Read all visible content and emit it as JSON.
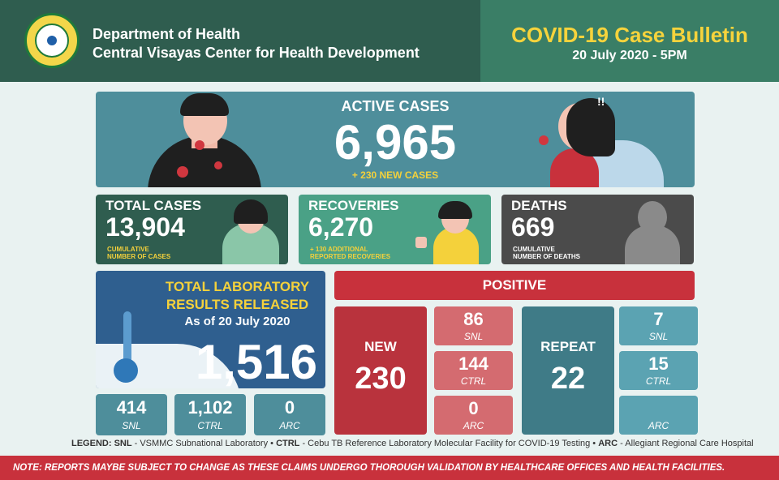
{
  "header": {
    "org_line1": "Department of Health",
    "org_line2": "Central Visayas Center for Health Development",
    "bulletin_title": "COVID-19 Case Bulletin",
    "bulletin_date": "20 July 2020 - 5PM"
  },
  "active": {
    "label": "ACTIVE CASES",
    "value": "6,965",
    "new_cases": "+ 230 NEW CASES"
  },
  "total": {
    "label": "TOTAL CASES",
    "value": "13,904",
    "sub1": "CUMULATIVE",
    "sub2": "NUMBER OF CASES"
  },
  "recoveries": {
    "label": "RECOVERIES",
    "value": "6,270",
    "sub1": "+ 130 ADDITIONAL",
    "sub2": "REPORTED RECOVERIES"
  },
  "deaths": {
    "label": "DEATHS",
    "value": "669",
    "sub1": "CUMULATIVE",
    "sub2": "NUMBER OF DEATHS"
  },
  "lab": {
    "title1": "TOTAL LABORATORY",
    "title2": "RESULTS RELEASED",
    "as_of": "As of 20 July 2020",
    "value": "1,516",
    "breakdown": [
      {
        "value": "414",
        "label": "SNL"
      },
      {
        "value": "1,102",
        "label": "CTRL"
      },
      {
        "value": "0",
        "label": "ARC"
      }
    ]
  },
  "positive": {
    "header": "POSITIVE",
    "new_label": "NEW",
    "new_value": "230",
    "new_breakdown": [
      {
        "value": "86",
        "label": "SNL"
      },
      {
        "value": "144",
        "label": "CTRL"
      },
      {
        "value": "0",
        "label": "ARC"
      }
    ],
    "repeat_label": "REPEAT",
    "repeat_value": "22",
    "repeat_breakdown": [
      {
        "value": "7",
        "label": "SNL"
      },
      {
        "value": "15",
        "label": "CTRL"
      },
      {
        "value": "",
        "label": "ARC"
      }
    ]
  },
  "legend": {
    "prefix": "LEGEND:",
    "snl_key": "SNL",
    "snl_text": " - VSMMC Subnational Laboratory • ",
    "ctrl_key": "CTRL",
    "ctrl_text": " - Cebu TB Reference Laboratory Molecular Facility for COVID-19 Testing • ",
    "arc_key": "ARC",
    "arc_text": " - Allegiant Regional Care Hospital"
  },
  "note": "NOTE: REPORTS MAYBE SUBJECT TO CHANGE AS THESE CLAIMS UNDERGO THOROUGH VALIDATION BY HEALTHCARE OFFICES AND HEALTH FACILITIES.",
  "colors": {
    "header_dark": "#2f5d4f",
    "header_green": "#3a7e66",
    "accent_yellow": "#f4d13b",
    "positive_red": "#c8313c",
    "teal": "#4e8e9b"
  }
}
